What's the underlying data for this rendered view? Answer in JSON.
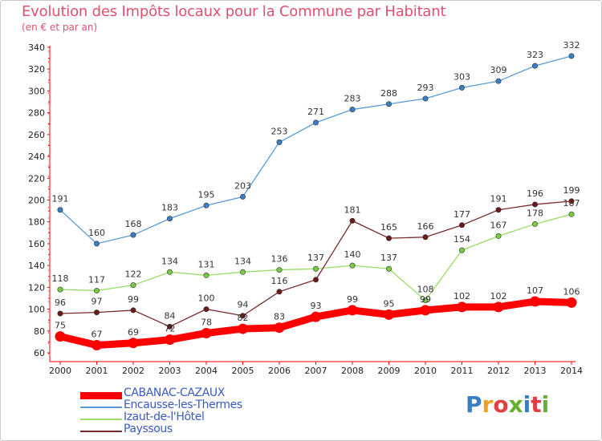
{
  "title": "Evolution des Impôts locaux pour la Commune par Habitant",
  "subtitle": "(en € et par an)",
  "colors": {
    "title": "#e05070",
    "axis": "#ff0000",
    "tick_text": "#222222",
    "legend_text": "#3a5bbf"
  },
  "chart_data": {
    "type": "line",
    "title": "Evolution des Impôts locaux pour la Commune par Habitant",
    "subtitle": "(en € et par an)",
    "xlabel": "",
    "ylabel": "",
    "ylim": [
      60,
      340
    ],
    "yticks": [
      60,
      80,
      100,
      120,
      140,
      160,
      180,
      200,
      220,
      240,
      260,
      280,
      300,
      320,
      340
    ],
    "categories": [
      "2000",
      "2001",
      "2002",
      "2003",
      "2004",
      "2005",
      "2006",
      "2007",
      "2008",
      "2009",
      "2010",
      "2011",
      "2012",
      "2013",
      "2014"
    ],
    "grid": false,
    "legend_position": "bottom-left",
    "series": [
      {
        "name": "Encausse-les-Thermes",
        "color": "#5b9bd5",
        "marker_color": "#3a7fc4",
        "emphasis": false,
        "values": [
          191,
          160,
          168,
          183,
          195,
          203,
          253,
          271,
          283,
          288,
          293,
          303,
          309,
          323,
          332
        ]
      },
      {
        "name": "Izaut-de-l'Hôtel",
        "color": "#99dd66",
        "marker_color": "#77cc44",
        "emphasis": false,
        "values": [
          118,
          117,
          122,
          134,
          131,
          134,
          136,
          137,
          140,
          137,
          108,
          154,
          167,
          178,
          187
        ]
      },
      {
        "name": "Payssous",
        "color": "#7a2a2a",
        "marker_color": "#6a1a1a",
        "emphasis": false,
        "values": [
          96,
          97,
          99,
          84,
          100,
          94,
          116,
          127,
          181,
          165,
          166,
          177,
          191,
          196,
          199
        ]
      },
      {
        "name": "CABANAC-CAZAUX",
        "color": "#ff0000",
        "marker_color": "#ff0000",
        "emphasis": true,
        "values": [
          75,
          67,
          69,
          72,
          78,
          82,
          83,
          93,
          99,
          95,
          99,
          102,
          102,
          107,
          106
        ]
      }
    ],
    "data_labels": {
      "Encausse-les-Thermes": [
        "191",
        "160",
        "168",
        "183",
        "195",
        "203",
        "253",
        "271",
        "283",
        "288",
        "293",
        "303",
        "309",
        "323",
        "332"
      ],
      "Izaut-de-l'Hôtel": [
        "118",
        "117",
        "122",
        "134",
        "131",
        "134",
        "136",
        "137",
        "140",
        "137",
        "108",
        "154",
        "167",
        "178",
        "187"
      ],
      "Payssous": [
        "96",
        "97",
        "99",
        "84",
        "100",
        "94",
        "116",
        "",
        "181",
        "165",
        "166",
        "177",
        "191",
        "196",
        "199"
      ],
      "CABANAC-CAZAUX": [
        "75",
        "67",
        "69",
        "72",
        "78",
        "82",
        "83",
        "93",
        "99",
        "95",
        "99",
        "102",
        "102",
        "107",
        "106"
      ]
    }
  },
  "legend": [
    {
      "label": "CABANAC-CAZAUX",
      "color": "#ff0000",
      "thickness": 9
    },
    {
      "label": "Encausse-les-Thermes",
      "color": "#5b9bd5",
      "thickness": 2
    },
    {
      "label": "Izaut-de-l'Hôtel",
      "color": "#99dd66",
      "thickness": 2
    },
    {
      "label": "Payssous",
      "color": "#7a2a2a",
      "thickness": 2
    }
  ],
  "logo": {
    "text": "Proxiti",
    "letter_colors": [
      "#3a7fc4",
      "#f0a020",
      "#e04040",
      "#66b030",
      "#3a7fc4",
      "#e04040",
      "#66b030"
    ]
  }
}
